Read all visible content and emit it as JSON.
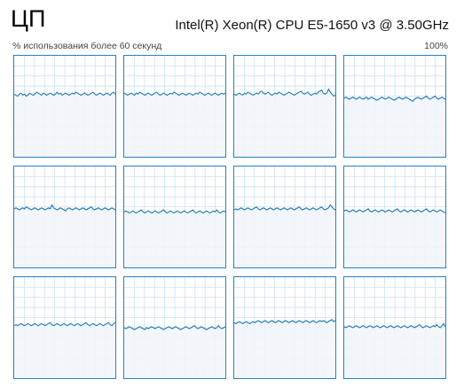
{
  "header": {
    "title": "ЦП",
    "cpu_model": "Intel(R) Xeon(R) CPU E5-1650 v3 @ 3.50GHz",
    "usage_caption": "% использования более 60 секунд",
    "max_label": "100%"
  },
  "colors": {
    "line": "#1f78b4",
    "fill": "#f1f6fb",
    "grid": "#cfe1f1",
    "border": "#2a7fbf"
  },
  "cores": [
    {
      "name": "core-1",
      "usage": [
        62,
        61,
        60,
        62,
        63,
        61,
        62,
        60,
        61,
        63,
        62,
        61,
        62,
        64,
        63,
        62,
        61,
        63,
        62,
        61,
        62,
        63,
        62,
        61,
        62,
        64,
        62,
        63,
        61,
        62,
        63,
        62,
        61,
        62,
        63,
        62,
        64,
        63,
        62,
        61,
        62,
        63,
        62,
        61,
        62,
        63,
        64,
        62,
        61,
        62,
        63,
        62,
        61,
        62,
        63,
        62,
        61,
        63,
        64,
        62
      ]
    },
    {
      "name": "core-2",
      "usage": [
        63,
        62,
        61,
        62,
        63,
        62,
        61,
        63,
        62,
        64,
        63,
        62,
        61,
        62,
        63,
        62,
        61,
        62,
        63,
        64,
        62,
        61,
        62,
        63,
        62,
        61,
        62,
        63,
        62,
        64,
        63,
        62,
        61,
        62,
        63,
        62,
        61,
        62,
        63,
        62,
        61,
        62,
        63,
        62,
        64,
        63,
        62,
        61,
        62,
        63,
        62,
        61,
        62,
        63,
        62,
        61,
        62,
        63,
        62,
        63
      ]
    },
    {
      "name": "core-3",
      "usage": [
        62,
        61,
        62,
        63,
        62,
        61,
        63,
        62,
        64,
        63,
        62,
        61,
        62,
        63,
        62,
        64,
        65,
        63,
        62,
        63,
        64,
        62,
        61,
        62,
        63,
        62,
        64,
        63,
        62,
        61,
        62,
        63,
        64,
        63,
        62,
        61,
        62,
        63,
        64,
        65,
        63,
        62,
        63,
        64,
        62,
        61,
        62,
        63,
        62,
        64,
        65,
        66,
        63,
        62,
        63,
        67,
        64,
        62,
        60,
        61
      ]
    },
    {
      "name": "core-4",
      "usage": [
        58,
        59,
        58,
        57,
        58,
        59,
        58,
        57,
        58,
        59,
        58,
        57,
        58,
        59,
        57,
        58,
        59,
        58,
        57,
        56,
        57,
        58,
        59,
        58,
        57,
        58,
        59,
        58,
        57,
        56,
        57,
        58,
        59,
        58,
        57,
        58,
        59,
        58,
        57,
        56,
        55,
        57,
        58,
        59,
        58,
        57,
        58,
        59,
        60,
        58,
        57,
        58,
        59,
        60,
        58,
        57,
        58,
        59,
        58,
        57
      ]
    },
    {
      "name": "core-5",
      "usage": [
        58,
        59,
        58,
        57,
        58,
        59,
        58,
        60,
        59,
        58,
        57,
        58,
        59,
        58,
        57,
        58,
        59,
        58,
        57,
        58,
        59,
        58,
        62,
        59,
        58,
        57,
        58,
        59,
        58,
        57,
        56,
        58,
        59,
        58,
        57,
        58,
        59,
        58,
        57,
        58,
        59,
        58,
        57,
        58,
        59,
        60,
        58,
        57,
        58,
        59,
        58,
        57,
        58,
        59,
        58,
        57,
        58,
        59,
        58,
        57
      ]
    },
    {
      "name": "core-6",
      "usage": [
        55,
        56,
        55,
        54,
        55,
        56,
        55,
        54,
        55,
        56,
        57,
        55,
        54,
        55,
        56,
        55,
        54,
        55,
        56,
        55,
        54,
        55,
        56,
        57,
        55,
        54,
        55,
        56,
        55,
        54,
        55,
        56,
        55,
        54,
        55,
        56,
        55,
        54,
        55,
        56,
        57,
        55,
        54,
        55,
        56,
        55,
        54,
        55,
        56,
        55,
        54,
        55,
        56,
        55,
        57,
        55,
        54,
        55,
        56,
        55
      ]
    },
    {
      "name": "core-7",
      "usage": [
        57,
        58,
        57,
        58,
        59,
        58,
        57,
        58,
        59,
        58,
        57,
        58,
        59,
        60,
        58,
        57,
        58,
        59,
        58,
        57,
        58,
        59,
        58,
        57,
        58,
        59,
        58,
        57,
        58,
        59,
        58,
        57,
        58,
        59,
        58,
        57,
        58,
        59,
        60,
        58,
        57,
        58,
        59,
        58,
        57,
        58,
        59,
        58,
        57,
        58,
        59,
        60,
        58,
        57,
        58,
        59,
        62,
        60,
        58,
        57
      ]
    },
    {
      "name": "core-8",
      "usage": [
        56,
        57,
        56,
        55,
        56,
        57,
        56,
        55,
        56,
        57,
        56,
        55,
        56,
        57,
        58,
        56,
        55,
        56,
        57,
        56,
        55,
        56,
        57,
        56,
        55,
        56,
        57,
        56,
        55,
        56,
        57,
        58,
        56,
        55,
        56,
        57,
        56,
        55,
        56,
        57,
        56,
        55,
        56,
        57,
        56,
        55,
        56,
        57,
        58,
        56,
        55,
        56,
        57,
        56,
        55,
        56,
        57,
        56,
        55,
        54
      ]
    },
    {
      "name": "core-9",
      "usage": [
        52,
        53,
        52,
        53,
        54,
        53,
        52,
        53,
        54,
        53,
        52,
        53,
        54,
        53,
        52,
        53,
        54,
        53,
        52,
        53,
        54,
        55,
        53,
        52,
        53,
        54,
        53,
        52,
        53,
        54,
        53,
        52,
        53,
        54,
        53,
        52,
        53,
        54,
        53,
        52,
        53,
        54,
        55,
        53,
        52,
        53,
        54,
        53,
        52,
        53,
        54,
        53,
        52,
        53,
        54,
        55,
        53,
        52,
        54,
        55
      ]
    },
    {
      "name": "core-10",
      "usage": [
        50,
        49,
        50,
        51,
        50,
        49,
        48,
        49,
        50,
        51,
        50,
        49,
        48,
        50,
        49,
        50,
        51,
        50,
        49,
        50,
        51,
        50,
        49,
        48,
        49,
        50,
        51,
        50,
        49,
        50,
        51,
        50,
        49,
        48,
        49,
        50,
        51,
        50,
        49,
        50,
        51,
        52,
        50,
        49,
        50,
        51,
        50,
        49,
        48,
        49,
        50,
        51,
        50,
        49,
        50,
        52,
        50,
        49,
        50,
        51
      ]
    },
    {
      "name": "core-11",
      "usage": [
        55,
        54,
        55,
        56,
        55,
        54,
        55,
        56,
        55,
        54,
        55,
        56,
        55,
        56,
        57,
        56,
        55,
        56,
        57,
        56,
        55,
        56,
        57,
        56,
        55,
        56,
        57,
        56,
        55,
        56,
        57,
        56,
        55,
        56,
        57,
        56,
        55,
        56,
        57,
        56,
        55,
        56,
        57,
        56,
        55,
        56,
        57,
        56,
        55,
        56,
        57,
        56,
        57,
        56,
        55,
        56,
        57,
        58,
        56,
        57
      ]
    },
    {
      "name": "core-12",
      "usage": [
        51,
        50,
        51,
        52,
        51,
        50,
        51,
        52,
        51,
        50,
        51,
        52,
        51,
        50,
        51,
        52,
        51,
        50,
        51,
        52,
        51,
        50,
        51,
        52,
        51,
        50,
        51,
        52,
        51,
        50,
        51,
        52,
        51,
        50,
        51,
        52,
        51,
        50,
        51,
        52,
        51,
        50,
        51,
        52,
        53,
        51,
        50,
        51,
        52,
        51,
        50,
        51,
        52,
        51,
        53,
        51,
        50,
        52,
        54,
        51
      ]
    }
  ]
}
